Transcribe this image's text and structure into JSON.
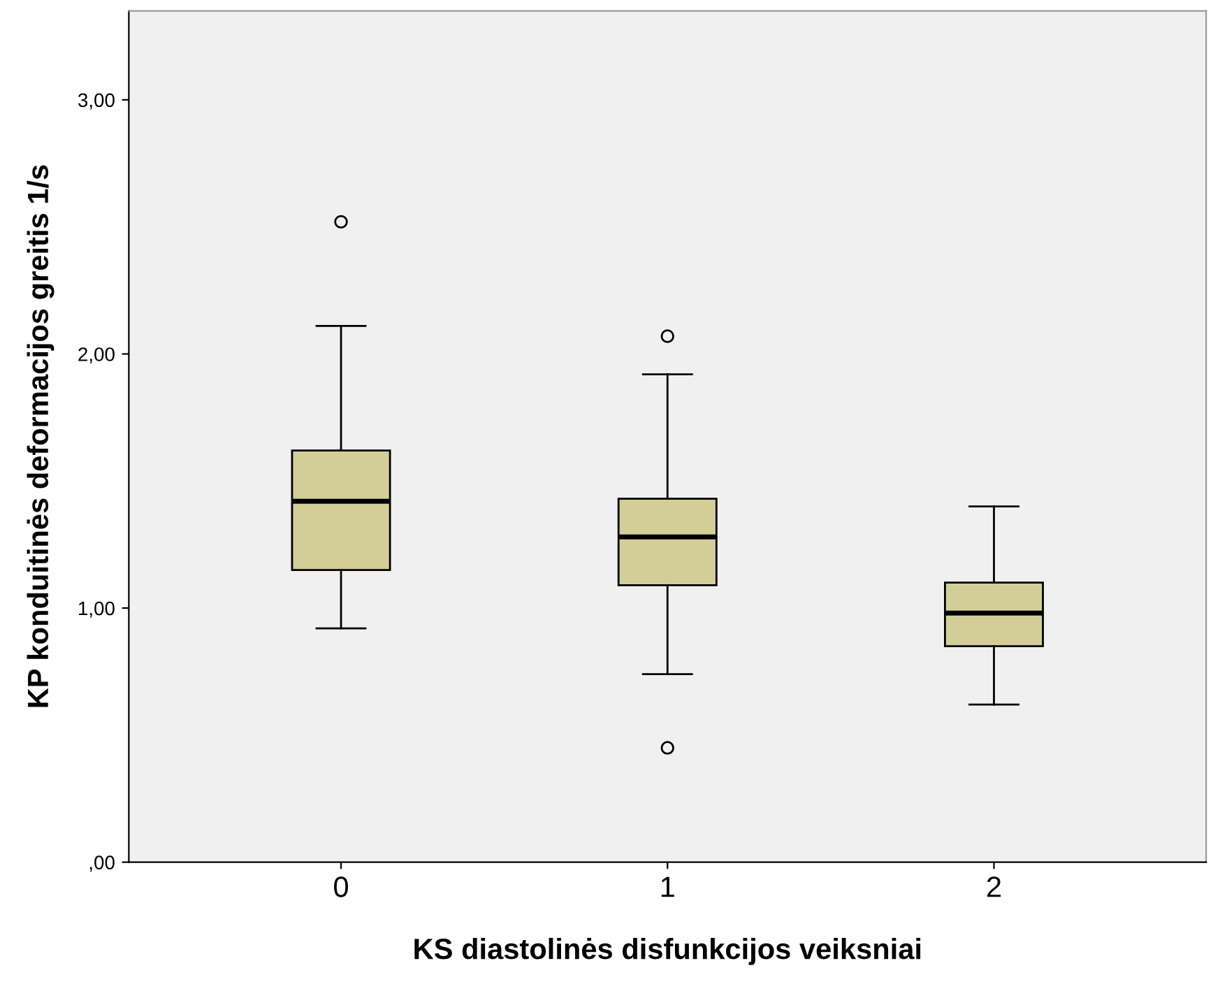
{
  "chart_data": {
    "type": "box",
    "xlabel": "KS diastolinės disfunkcijos veiksniai",
    "ylabel": "KP konduitinės deformacijos greitis 1/s",
    "categories": [
      "0",
      "1",
      "2"
    ],
    "boxes": [
      {
        "low": 0.92,
        "q1": 1.15,
        "median": 1.42,
        "q3": 1.62,
        "high": 2.11,
        "outliers": [
          2.52
        ]
      },
      {
        "low": 0.74,
        "q1": 1.09,
        "median": 1.28,
        "q3": 1.43,
        "high": 1.92,
        "outliers": [
          2.07,
          0.45
        ]
      },
      {
        "low": 0.62,
        "q1": 0.85,
        "median": 0.98,
        "q3": 1.1,
        "high": 1.4
      }
    ],
    "color": "#d3ce97",
    "ylim": [
      0,
      3.35
    ],
    "yticks": [
      {
        "value": 0,
        "label": ",00"
      },
      {
        "value": 1,
        "label": "1,00"
      },
      {
        "value": 2,
        "label": "2,00"
      },
      {
        "value": 3,
        "label": "3,00"
      }
    ],
    "grid": false
  }
}
